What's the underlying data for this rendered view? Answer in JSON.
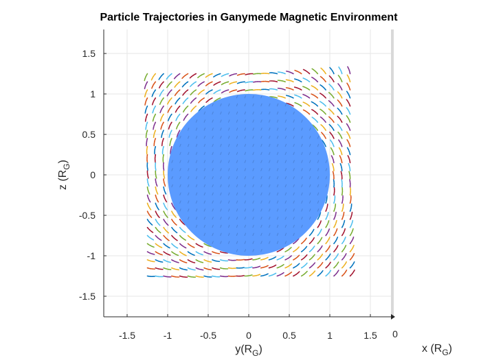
{
  "chart_data": {
    "type": "line",
    "title": "Particle Trajectories in Ganymede Magnetic Environment",
    "ylabel_main": "z (R",
    "ylabel_sub": "G",
    "ylabel_tail": ")",
    "xlabel_main": "y(R",
    "xlabel_sub": "G",
    "xlabel_tail": ")",
    "depth_label_main": "x (R",
    "depth_label_sub": "G",
    "depth_label_tail": ")",
    "depth_tick": "0",
    "xlim": [
      -1.75,
      1.75
    ],
    "ylim": [
      -1.75,
      1.75
    ],
    "xticks": [
      -1.5,
      -1,
      -0.5,
      0,
      0.5,
      1,
      1.5
    ],
    "xtick_labels": [
      "-1.5",
      "-1",
      "-0.5",
      "0",
      "0.5",
      "1",
      "1.5"
    ],
    "yticks": [
      -1.5,
      -1,
      -0.5,
      0,
      0.5,
      1,
      1.5
    ],
    "ytick_labels": [
      "-1.5",
      "-1",
      "-0.5",
      "0",
      "0.5",
      "1",
      "1.5"
    ],
    "grid": true,
    "sphere": {
      "center": [
        0,
        0
      ],
      "radius": 1.0,
      "color": "#5b9bff"
    },
    "particle_grid": {
      "start": -1.25,
      "end": 1.3,
      "step": 0.1,
      "trail_length": 0.09
    },
    "series_colors": [
      "#0072bd",
      "#d95319",
      "#edb120",
      "#7e2f8e",
      "#77ac30",
      "#4dbeee",
      "#a2142f"
    ]
  }
}
